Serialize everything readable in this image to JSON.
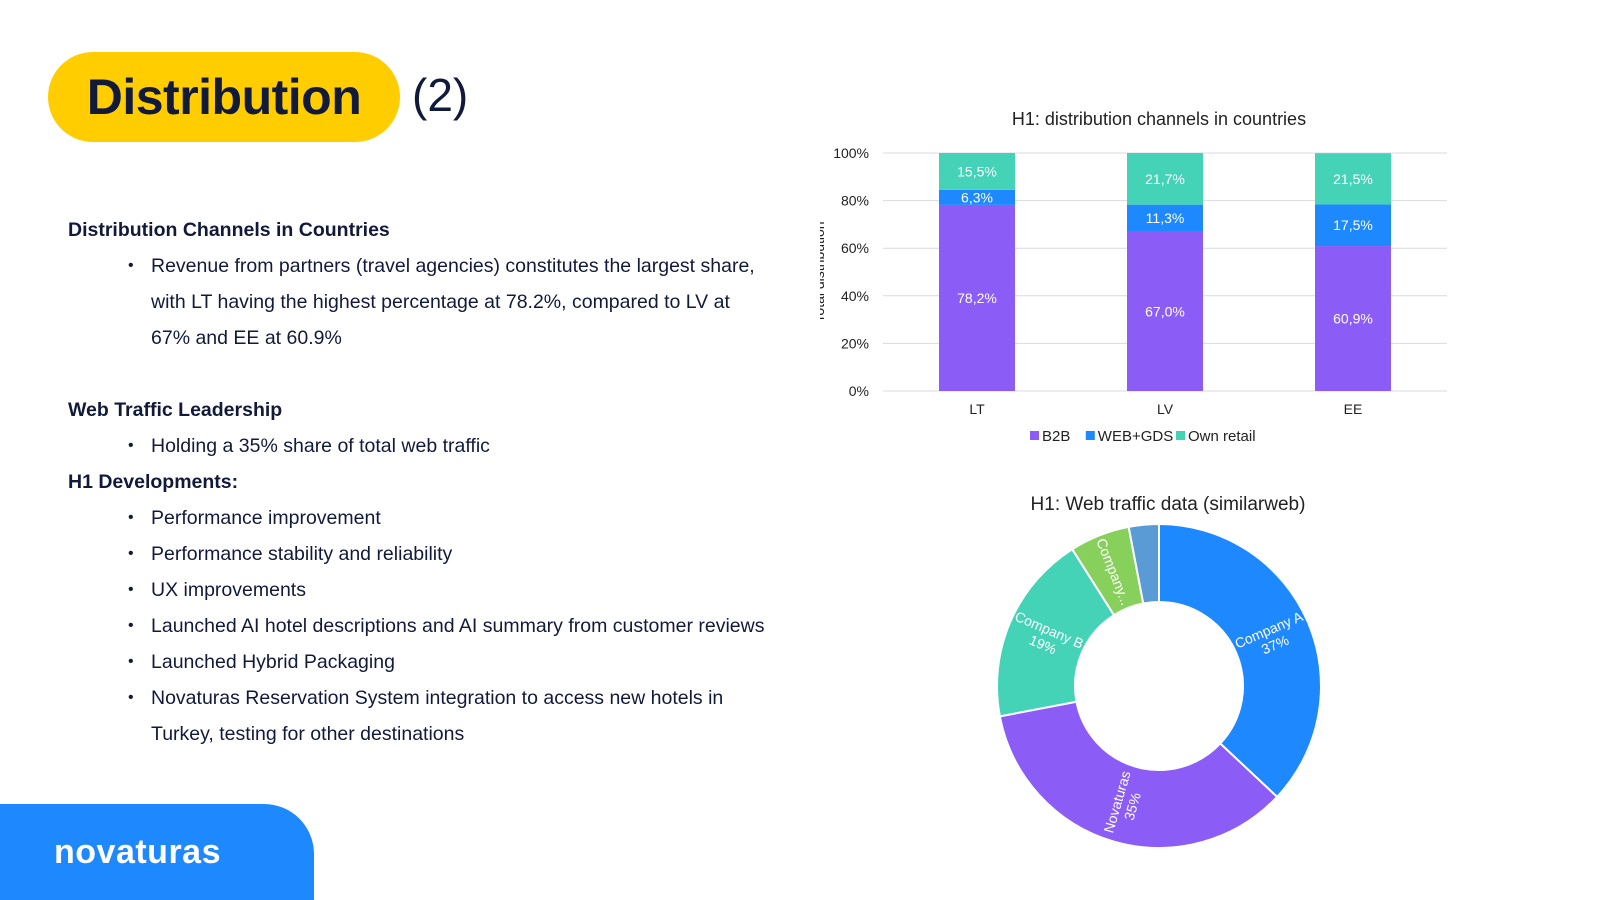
{
  "slide": {
    "title": "Distribution",
    "title_suffix": "(2)",
    "accent_color": "#ffcd00",
    "brand_color": "#1e88ff"
  },
  "sections": {
    "channels": {
      "heading": "Distribution Channels in Countries",
      "bullets": [
        "Revenue from partners (travel agencies) constitutes the largest share, with LT having the highest percentage at 78.2%, compared to LV at 67% and EE at 60.9%"
      ]
    },
    "web": {
      "heading": "Web Traffic Leadership",
      "bullets": [
        "Holding a 35% share of total web traffic"
      ]
    },
    "h1": {
      "heading": "H1 Developments:",
      "bullets": [
        "Performance improvement",
        "Performance stability and reliability",
        "UX improvements",
        "Launched AI hotel descriptions and AI summary from customer reviews",
        "Launched Hybrid Packaging",
        "Novaturas Reservation System integration to access new hotels in Turkey, testing for other destinations"
      ]
    }
  },
  "logo": {
    "text": "novaturas"
  },
  "chart_data": [
    {
      "type": "bar",
      "stacked": true,
      "title": "H1: distribution channels in countries",
      "ylabel": "Total distribution",
      "xlabel": "",
      "categories": [
        "LT",
        "LV",
        "EE"
      ],
      "ylim": [
        0,
        100
      ],
      "yticks": [
        "0%",
        "20%",
        "40%",
        "60%",
        "80%",
        "100%"
      ],
      "grid": true,
      "legend_position": "bottom",
      "series": [
        {
          "name": "B2B",
          "values": [
            78.2,
            67.0,
            60.9
          ],
          "labels": [
            "78,2%",
            "67,0%",
            "60,9%"
          ],
          "color": "#8b5cf6"
        },
        {
          "name": "WEB+GDS",
          "values": [
            6.3,
            11.3,
            17.5
          ],
          "labels": [
            "6,3%",
            "11,3%",
            "17,5%"
          ],
          "color": "#1e88ff"
        },
        {
          "name": "Own retail",
          "values": [
            15.5,
            21.7,
            21.5
          ],
          "labels": [
            "15,5%",
            "21,7%",
            "21,5%"
          ],
          "color": "#45d3b8"
        }
      ]
    },
    {
      "type": "pie",
      "donut": true,
      "title": "H1: Web traffic data (similarweb)",
      "slices": [
        {
          "name": "Company A",
          "value": 37,
          "label": "37%",
          "color": "#1e88ff"
        },
        {
          "name": "Novaturas",
          "value": 35,
          "label": "35%",
          "color": "#8b5cf6"
        },
        {
          "name": "Company B",
          "value": 19,
          "label": "19%",
          "color": "#45d3b8"
        },
        {
          "name": "Company...",
          "value": 6,
          "label": "",
          "color": "#88d05c"
        },
        {
          "name": "",
          "value": 3,
          "label": "",
          "color": "#5b9bd5"
        }
      ]
    }
  ]
}
